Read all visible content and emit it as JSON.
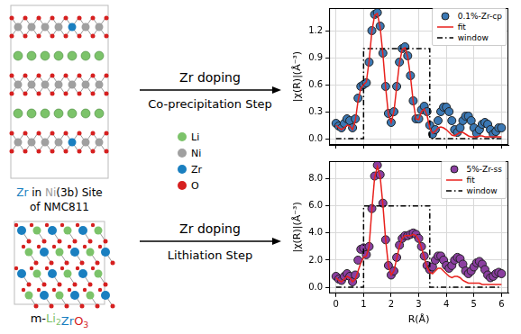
{
  "diagram": {
    "top_structure_label": [
      "Zr in Ni(3b) Site",
      "of NMC811"
    ],
    "bottom_structure_label": "m-Li2ZrO3",
    "arrows": [
      {
        "above": "Zr doping",
        "below": "Co-precipitation Step"
      },
      {
        "above": "Zr doping",
        "below": "Lithiation Step"
      }
    ],
    "atoms": [
      {
        "name": "Li",
        "color": "#7cc36a"
      },
      {
        "name": "Ni",
        "color": "#a0a0a0"
      },
      {
        "name": "Zr",
        "color": "#1a7fc0"
      },
      {
        "name": "O",
        "color": "#d62020"
      }
    ]
  },
  "chart_data": [
    {
      "type": "line",
      "ylabel": "|χ(R)|(Å⁻³)",
      "x": [
        0,
        0.1,
        0.2,
        0.3,
        0.4,
        0.5,
        0.6,
        0.7,
        0.8,
        0.9,
        1,
        1.1,
        1.2,
        1.3,
        1.4,
        1.5,
        1.6,
        1.7,
        1.8,
        1.9,
        2,
        2.1,
        2.2,
        2.3,
        2.4,
        2.5,
        2.6,
        2.7,
        2.8,
        2.9,
        3,
        3.1,
        3.2,
        3.3,
        3.4,
        3.5,
        3.6,
        3.7,
        3.8,
        3.9,
        4,
        4.1,
        4.2,
        4.3,
        4.4,
        4.5,
        4.6,
        4.7,
        4.8,
        4.9,
        5,
        5.1,
        5.2,
        5.3,
        5.4,
        5.5,
        5.6,
        5.7,
        5.8,
        5.9,
        6
      ],
      "series": [
        {
          "name": "0.1%-Zr-cp",
          "type": "scatter",
          "marker": "circle",
          "color": "#3b78b4",
          "values": [
            0.17,
            0.14,
            0.12,
            0.17,
            0.22,
            0.2,
            0.12,
            0.22,
            0.45,
            0.58,
            0.6,
            0.62,
            0.85,
            1.2,
            1.38,
            1.4,
            1.25,
            0.95,
            0.58,
            0.28,
            0.18,
            0.3,
            0.58,
            0.85,
            1.0,
            1.02,
            0.92,
            0.7,
            0.42,
            0.22,
            0.22,
            0.32,
            0.36,
            0.3,
            0.15,
            0.05,
            0.1,
            0.2,
            0.3,
            0.35,
            0.35,
            0.3,
            0.2,
            0.1,
            0.07,
            0.12,
            0.2,
            0.25,
            0.25,
            0.2,
            0.12,
            0.06,
            0.1,
            0.16,
            0.18,
            0.16,
            0.1,
            0.05,
            0.08,
            0.12,
            0.12
          ]
        },
        {
          "name": "fit",
          "type": "line",
          "line_style": "solid",
          "color": "#e8211d",
          "values": [
            0.15,
            0.12,
            0.1,
            0.12,
            0.15,
            0.14,
            0.1,
            0.2,
            0.42,
            0.56,
            0.6,
            0.63,
            0.86,
            1.19,
            1.37,
            1.39,
            1.24,
            0.94,
            0.57,
            0.27,
            0.18,
            0.3,
            0.57,
            0.84,
            0.99,
            1.01,
            0.91,
            0.69,
            0.41,
            0.22,
            0.21,
            0.3,
            0.33,
            0.26,
            0.12,
            0.06,
            0.08,
            0.12,
            0.13,
            0.12,
            0.1,
            0.07,
            0.04,
            0.03,
            0.05,
            0.07,
            0.07,
            0.05,
            0.03,
            0.02,
            0.02,
            0.02,
            0.03,
            0.03,
            0.02,
            0.02,
            0.02,
            0.02,
            0.02,
            0.02,
            0.02
          ]
        },
        {
          "name": "window",
          "type": "line",
          "line_style": "dashdot",
          "color": "#000000",
          "x": [
            0,
            1,
            1,
            3.4,
            3.4,
            6
          ],
          "values": [
            0,
            0,
            1,
            1,
            0,
            0
          ]
        }
      ],
      "xlim": [
        -0.25,
        6.25
      ],
      "ylim": [
        -0.07,
        1.45
      ],
      "xticks": [
        0,
        1,
        2,
        3,
        4,
        5,
        6
      ],
      "yticks": [
        {
          "value": 0,
          "label": "0.0"
        },
        0.3,
        0.6,
        0.9,
        1.2
      ],
      "grid": true,
      "legend": "upper right",
      "tick_labels": "y"
    },
    {
      "type": "line",
      "xlabel": "R(Å)",
      "ylabel": "|χ(R)|(Å⁻³)",
      "x": [
        0,
        0.1,
        0.2,
        0.3,
        0.4,
        0.5,
        0.6,
        0.7,
        0.8,
        0.9,
        1,
        1.1,
        1.2,
        1.3,
        1.4,
        1.5,
        1.6,
        1.7,
        1.8,
        1.9,
        2,
        2.1,
        2.2,
        2.3,
        2.4,
        2.5,
        2.6,
        2.7,
        2.8,
        2.9,
        3,
        3.1,
        3.2,
        3.3,
        3.4,
        3.5,
        3.6,
        3.7,
        3.8,
        3.9,
        4,
        4.1,
        4.2,
        4.3,
        4.4,
        4.5,
        4.6,
        4.7,
        4.8,
        4.9,
        5,
        5.1,
        5.2,
        5.3,
        5.4,
        5.5,
        5.6,
        5.7,
        5.8,
        5.9,
        6
      ],
      "series": [
        {
          "name": "5%-Zr-ss",
          "type": "scatter",
          "marker": "circle",
          "color": "#8b3fa0",
          "values": [
            0.8,
            0.6,
            0.5,
            0.8,
            1.0,
            0.8,
            0.4,
            0.9,
            2.0,
            2.8,
            2.9,
            2.4,
            3.0,
            5.8,
            8.2,
            9.0,
            8.3,
            6.2,
            3.5,
            1.6,
            0.9,
            1.2,
            2.2,
            3.1,
            3.6,
            3.8,
            3.8,
            3.9,
            4.0,
            3.9,
            3.6,
            3.0,
            2.3,
            1.6,
            1.3,
            1.5,
            2.0,
            2.3,
            2.3,
            2.0,
            1.6,
            1.4,
            1.6,
            2.0,
            2.2,
            2.1,
            1.7,
            1.2,
            1.0,
            1.2,
            1.5,
            1.8,
            1.9,
            1.7,
            1.3,
            0.9,
            0.7,
            0.8,
            1.0,
            1.1,
            1.0
          ]
        },
        {
          "name": "fit",
          "type": "line",
          "line_style": "solid",
          "color": "#e8211d",
          "values": [
            0.7,
            0.5,
            0.4,
            0.6,
            0.8,
            0.7,
            0.4,
            0.6,
            1.2,
            1.8,
            2.2,
            2.3,
            3.0,
            5.7,
            8.1,
            8.9,
            8.2,
            6.1,
            3.5,
            1.6,
            0.9,
            1.2,
            2.1,
            3.0,
            3.6,
            3.8,
            3.8,
            3.8,
            3.9,
            3.8,
            3.5,
            2.9,
            2.2,
            1.5,
            1.1,
            1.0,
            1.2,
            1.4,
            1.4,
            1.2,
            1.0,
            0.8,
            0.7,
            0.8,
            0.8,
            0.7,
            0.5,
            0.4,
            0.3,
            0.3,
            0.3,
            0.3,
            0.3,
            0.2,
            0.2,
            0.2,
            0.2,
            0.2,
            0.2,
            0.2,
            0.2
          ]
        },
        {
          "name": "window",
          "type": "line",
          "line_style": "dashdot",
          "color": "#000000",
          "x": [
            0,
            1,
            1,
            3.4,
            3.4,
            6
          ],
          "values": [
            0,
            0,
            6,
            6,
            0,
            0
          ]
        }
      ],
      "xlim": [
        -0.25,
        6.25
      ],
      "ylim": [
        -0.45,
        9.3
      ],
      "xticks": [
        0,
        1,
        2,
        3,
        4,
        5,
        6
      ],
      "yticks": [
        {
          "value": 0,
          "label": "0.0"
        },
        {
          "value": 2,
          "label": "2.0"
        },
        {
          "value": 4,
          "label": "4.0"
        },
        {
          "value": 6,
          "label": "6.0"
        },
        {
          "value": 8,
          "label": "8.0"
        }
      ],
      "grid": true,
      "legend": "upper right",
      "tick_labels": true
    }
  ]
}
